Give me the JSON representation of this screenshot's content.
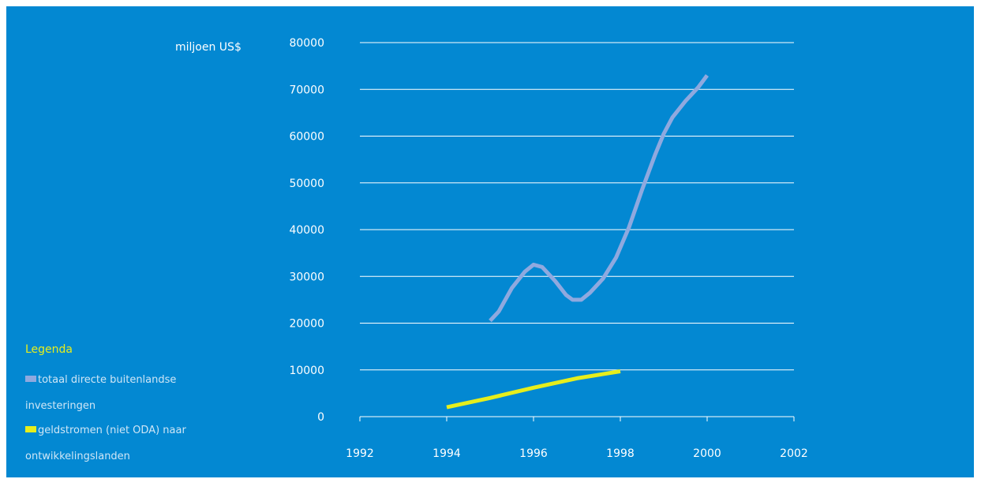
{
  "colors": {
    "background": "#0388d2",
    "grid": "#ffffff",
    "axis_text": "#ffffff",
    "legend_title": "#e6ee1c",
    "legend_text": "#cfe6f6"
  },
  "chart_data": {
    "type": "line",
    "title": "",
    "xlabel": "",
    "ylabel": "miljoen US$",
    "xlim": [
      1992,
      2002
    ],
    "ylim": [
      0,
      80000
    ],
    "x_ticks": [
      1992,
      1994,
      1996,
      1998,
      2000,
      2002
    ],
    "y_ticks": [
      0,
      10000,
      20000,
      30000,
      40000,
      50000,
      60000,
      70000,
      80000
    ],
    "grid": true,
    "legend_placement": "bottom-left",
    "legend_title": "Legenda",
    "series": [
      {
        "name": "totaal directe buitenlandse investeringen",
        "color": "#8fa9df",
        "x": [
          1995.0,
          1995.2,
          1995.5,
          1995.8,
          1996.0,
          1996.2,
          1996.5,
          1996.75,
          1996.9,
          1997.1,
          1997.3,
          1997.6,
          1997.9,
          1998.2,
          1998.5,
          1998.8,
          1999.0,
          1999.2,
          1999.5,
          1999.8,
          2000.0
        ],
        "y": [
          20500,
          22500,
          27500,
          31000,
          32500,
          32000,
          29000,
          26000,
          25000,
          25000,
          26500,
          29500,
          34000,
          40500,
          48500,
          56000,
          60500,
          64000,
          67500,
          70500,
          73000
        ]
      },
      {
        "name": "geldstromen (niet ODA) naar ontwikkelingslanden",
        "color": "#e6ee1c",
        "x": [
          1994,
          1995,
          1996,
          1997,
          1998
        ],
        "y": [
          2000,
          4000,
          6200,
          8200,
          9700
        ]
      }
    ]
  }
}
